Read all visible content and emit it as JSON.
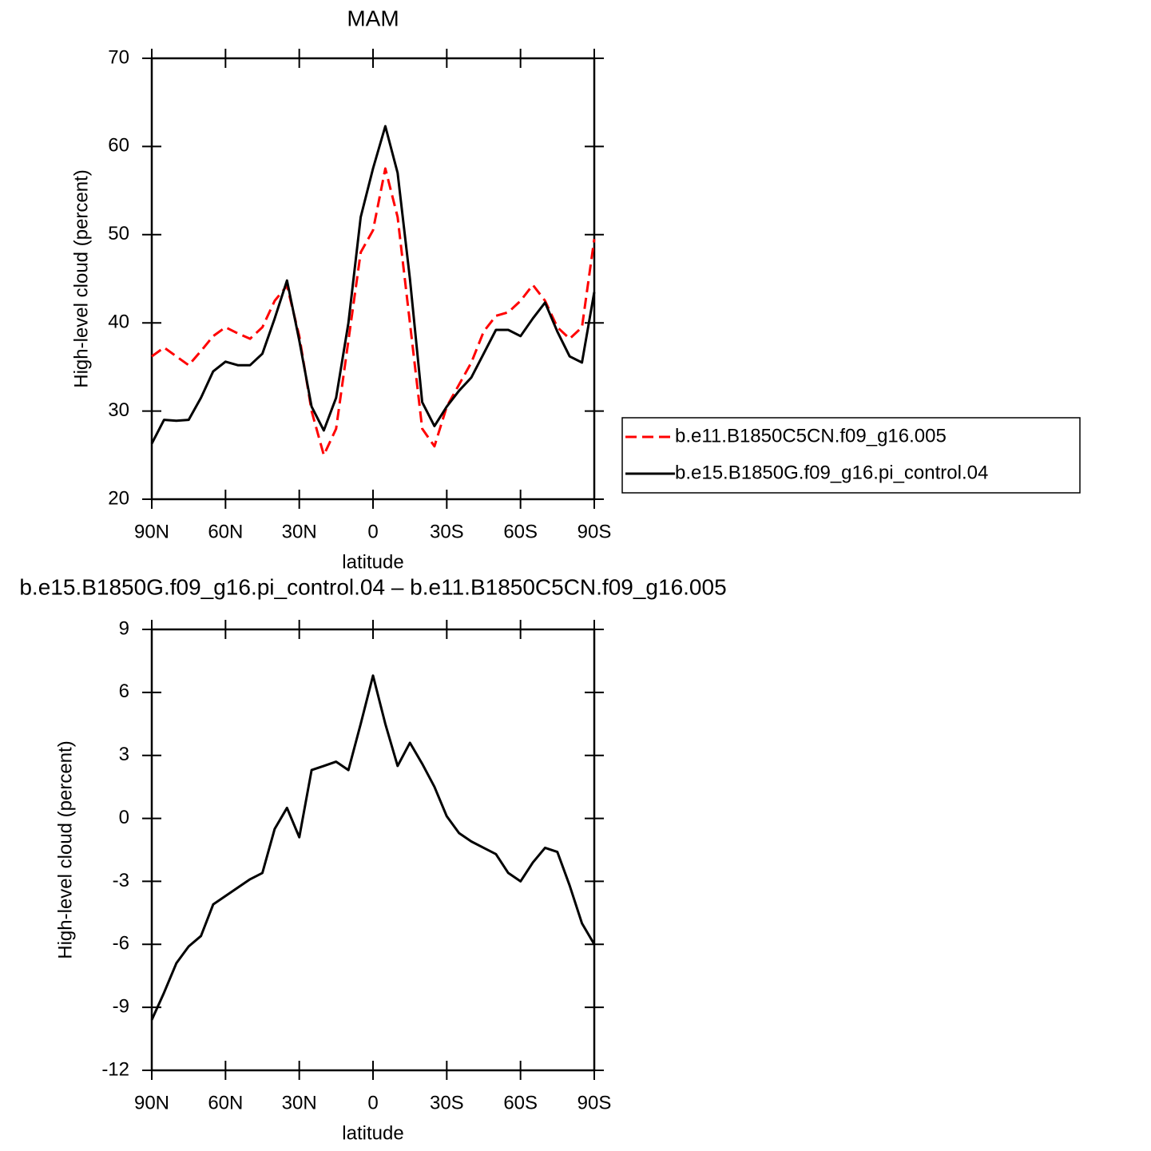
{
  "chart_data": [
    {
      "type": "line",
      "title": "MAM",
      "xlabel": "latitude",
      "ylabel": "High-level cloud (percent)",
      "x": [
        90,
        85,
        80,
        75,
        70,
        65,
        60,
        55,
        50,
        45,
        40,
        35,
        30,
        25,
        20,
        15,
        10,
        5,
        0,
        -5,
        -10,
        -15,
        -20,
        -25,
        -30,
        -35,
        -40,
        -45,
        -50,
        -55,
        -60,
        -65,
        -70,
        -75,
        -80,
        -85,
        -90
      ],
      "xlim": [
        90,
        -90
      ],
      "xticks": [
        {
          "value": 90,
          "label": "90N"
        },
        {
          "value": 60,
          "label": "60N"
        },
        {
          "value": 30,
          "label": "30N"
        },
        0,
        {
          "value": -30,
          "label": "30S"
        },
        {
          "value": -60,
          "label": "60S"
        },
        {
          "value": -90,
          "label": "90S"
        }
      ],
      "ylim": [
        20,
        70
      ],
      "yticks": [
        20,
        30,
        40,
        50,
        60,
        70
      ],
      "legend": "right",
      "series": [
        {
          "name": "b.e11.B1850C5CN.f09_g16.005",
          "color": "#ff0000",
          "dash": "dashed",
          "values": [
            36.2,
            37.2,
            36.2,
            35.2,
            36.8,
            38.5,
            39.5,
            38.8,
            38.2,
            39.5,
            42.5,
            44.2,
            38.5,
            30,
            25,
            28,
            38,
            48,
            50.5,
            57.5,
            52,
            40,
            28,
            26,
            30.5,
            33,
            35.5,
            39,
            40.8,
            41.2,
            42.5,
            44.3,
            42.5,
            39.5,
            38.2,
            39.5,
            49.5
          ]
        },
        {
          "name": "b.e15.B1850G.f09_g16.pi_control.04",
          "color": "#000000",
          "dash": "solid",
          "values": [
            26.3,
            29,
            28.9,
            29,
            31.5,
            34.5,
            35.6,
            35.2,
            35.2,
            36.5,
            40.5,
            44.8,
            38,
            30.5,
            27.8,
            31.5,
            40,
            52,
            57.5,
            62.3,
            57,
            45,
            31,
            28.3,
            30.5,
            32.3,
            33.8,
            36.5,
            39.2,
            39.2,
            38.5,
            40.5,
            42.3,
            39,
            36.2,
            35.5,
            43.5
          ]
        }
      ]
    },
    {
      "type": "line",
      "title": "b.e15.B1850G.f09_g16.pi_control.04 – b.e11.B1850C5CN.f09_g16.005",
      "xlabel": "latitude",
      "ylabel": "High-level cloud (percent)",
      "x": [
        90,
        85,
        80,
        75,
        70,
        65,
        60,
        55,
        50,
        45,
        40,
        35,
        30,
        25,
        20,
        15,
        10,
        5,
        0,
        -5,
        -10,
        -15,
        -20,
        -25,
        -30,
        -35,
        -40,
        -45,
        -50,
        -55,
        -60,
        -65,
        -70,
        -75,
        -80,
        -85,
        -90
      ],
      "xlim": [
        90,
        -90
      ],
      "xticks": [
        {
          "value": 90,
          "label": "90N"
        },
        {
          "value": 60,
          "label": "60N"
        },
        {
          "value": 30,
          "label": "30N"
        },
        0,
        {
          "value": -30,
          "label": "30S"
        },
        {
          "value": -60,
          "label": "60S"
        },
        {
          "value": -90,
          "label": "90S"
        }
      ],
      "ylim": [
        -12,
        9
      ],
      "yticks": [
        -12,
        -9,
        -6,
        -3,
        0,
        3,
        6,
        9
      ],
      "series": [
        {
          "color": "#000000",
          "dash": "solid",
          "values": [
            -9.6,
            -8.3,
            -6.9,
            -6.1,
            -5.6,
            -4.1,
            -3.7,
            -3.3,
            -2.9,
            -2.6,
            -0.5,
            0.5,
            -0.9,
            2.3,
            2.5,
            2.7,
            2.3,
            4.5,
            6.8,
            4.5,
            2.5,
            3.6,
            2.6,
            1.5,
            0.1,
            -0.7,
            -1.1,
            -1.4,
            -1.7,
            -2.6,
            -3.0,
            -2.1,
            -1.4,
            -1.6,
            -3.2,
            -5.0,
            -6.0
          ]
        }
      ]
    }
  ]
}
